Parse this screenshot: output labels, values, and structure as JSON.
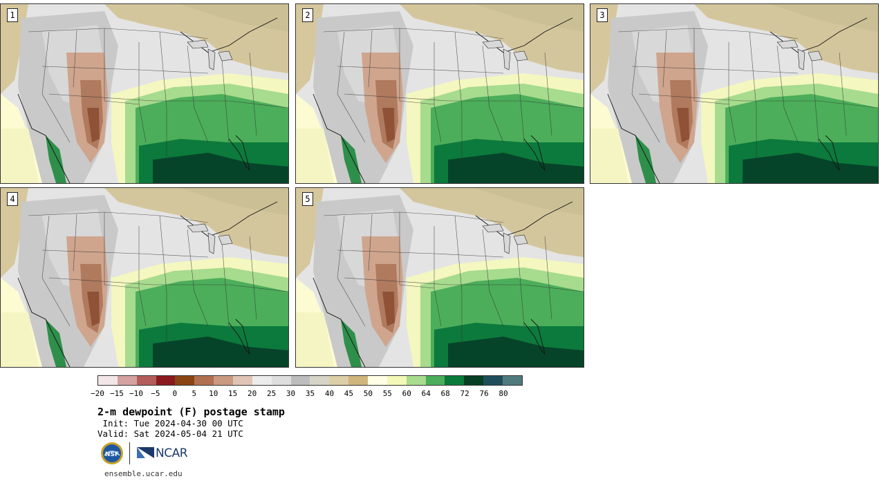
{
  "panels": [
    {
      "label": "1"
    },
    {
      "label": "2"
    },
    {
      "label": "3"
    },
    {
      "label": "4"
    },
    {
      "label": "5"
    }
  ],
  "colorbar": {
    "colors": [
      "#f3e6e6",
      "#d4a0a0",
      "#b45c5c",
      "#8a1a1e",
      "#8a4414",
      "#b07050",
      "#c99a80",
      "#e0c4b4",
      "#ececec",
      "#dedede",
      "#bdbdbd",
      "#d6d4c6",
      "#dccfa6",
      "#cfb47c",
      "#ffffe6",
      "#f4f8b8",
      "#a8dc8e",
      "#4cae5a",
      "#0a7a3a",
      "#063f24",
      "#1f4e5a",
      "#4f7a7e"
    ],
    "ticks": [
      "−20",
      "−15",
      "−10",
      "−5",
      "0",
      "5",
      "10",
      "15",
      "20",
      "25",
      "30",
      "35",
      "40",
      "45",
      "50",
      "55",
      "60",
      "64",
      "68",
      "72",
      "76",
      "80"
    ]
  },
  "title": "2-m dewpoint (F) postage stamp",
  "init": " Init: Tue 2024-04-30 00 UTC",
  "valid": "Valid: Sat 2024-05-04 21 UTC",
  "logos": {
    "nsf": "NSF",
    "ncar": "NCAR"
  },
  "site": "ensemble.ucar.edu"
}
